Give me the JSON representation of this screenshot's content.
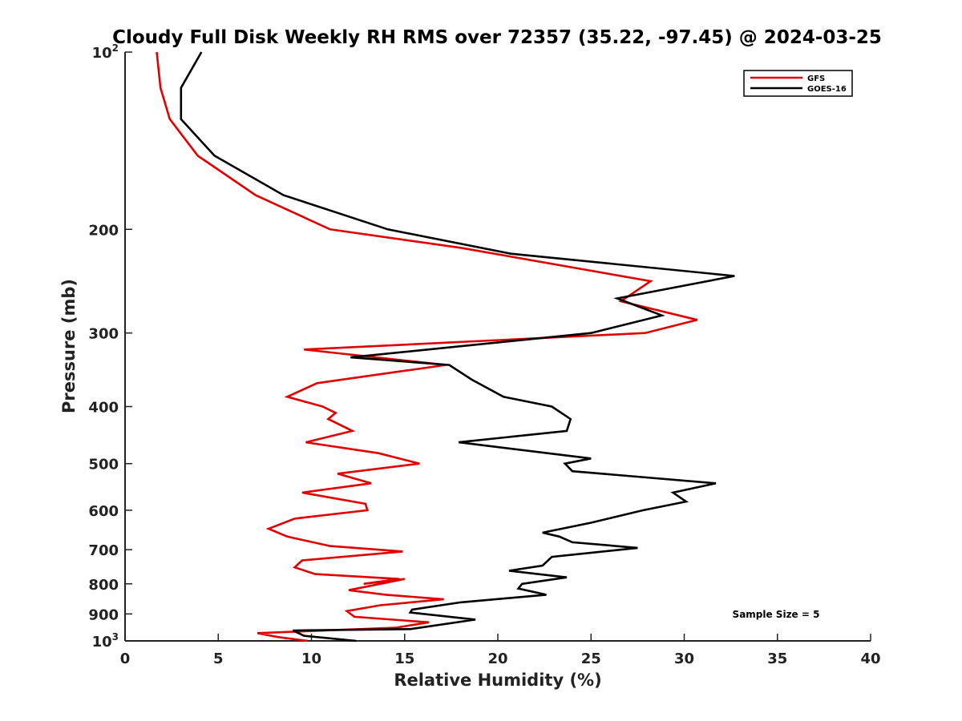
{
  "chart_data": {
    "type": "line",
    "title": "Cloudy Full Disk Weekly RH RMS over 72357 (35.22, -97.45) @ 2024-03-25",
    "xlabel": "Relative Humidity (%)",
    "ylabel": "Pressure (mb)",
    "xlim": [
      0,
      40
    ],
    "ylim": [
      100,
      1000
    ],
    "y_scale": "log",
    "y_reversed": true,
    "grid": false,
    "legend_position": "top-right",
    "x_ticks": [
      "0",
      "5",
      "10",
      "15",
      "20",
      "25",
      "30",
      "35",
      "40"
    ],
    "y_ticks": [
      {
        "value": 100,
        "base": "10",
        "exp": "2"
      },
      {
        "value": 200,
        "label": "200"
      },
      {
        "value": 300,
        "label": "300"
      },
      {
        "value": 400,
        "label": "400"
      },
      {
        "value": 500,
        "label": "500"
      },
      {
        "value": 600,
        "label": "600"
      },
      {
        "value": 700,
        "label": "700"
      },
      {
        "value": 800,
        "label": "800"
      },
      {
        "value": 900,
        "label": "900"
      },
      {
        "value": 1000,
        "base": "10",
        "exp": "3"
      }
    ],
    "annotation": "Sample Size = 5",
    "series": [
      {
        "name": "GFS",
        "color": "#e00000",
        "points": [
          [
            1.7,
            100
          ],
          [
            1.9,
            115
          ],
          [
            2.4,
            130
          ],
          [
            3.9,
            150
          ],
          [
            7.0,
            175
          ],
          [
            11.0,
            200
          ],
          [
            18.0,
            215
          ],
          [
            28.2,
            245
          ],
          [
            26.6,
            265
          ],
          [
            30.7,
            285
          ],
          [
            27.9,
            300
          ],
          [
            9.6,
            320
          ],
          [
            17.2,
            340
          ],
          [
            10.3,
            365
          ],
          [
            8.7,
            385
          ],
          [
            10.6,
            400
          ],
          [
            11.3,
            410
          ],
          [
            10.9,
            420
          ],
          [
            12.2,
            440
          ],
          [
            9.7,
            460
          ],
          [
            13.6,
            480
          ],
          [
            15.8,
            500
          ],
          [
            11.4,
            520
          ],
          [
            13.2,
            540
          ],
          [
            9.5,
            560
          ],
          [
            12.9,
            585
          ],
          [
            13.0,
            600
          ],
          [
            9.1,
            620
          ],
          [
            7.7,
            645
          ],
          [
            8.7,
            665
          ],
          [
            11.0,
            690
          ],
          [
            14.9,
            705
          ],
          [
            9.5,
            730
          ],
          [
            9.1,
            750
          ],
          [
            10.2,
            770
          ],
          [
            14.7,
            785
          ],
          [
            12.8,
            800
          ],
          [
            15.0,
            785
          ],
          [
            12.0,
            820
          ],
          [
            14.0,
            835
          ],
          [
            17.1,
            850
          ],
          [
            13.7,
            870
          ],
          [
            11.9,
            890
          ],
          [
            12.3,
            910
          ],
          [
            16.3,
            930
          ],
          [
            14.5,
            950
          ],
          [
            7.1,
            970
          ],
          [
            8.2,
            985
          ],
          [
            9.8,
            1000
          ]
        ]
      },
      {
        "name": "GOES-16",
        "color": "#000000",
        "points": [
          [
            4.1,
            100
          ],
          [
            3.0,
            115
          ],
          [
            3.0,
            130
          ],
          [
            4.8,
            150
          ],
          [
            8.5,
            175
          ],
          [
            14.1,
            200
          ],
          [
            20.7,
            220
          ],
          [
            32.7,
            240
          ],
          [
            26.4,
            262
          ],
          [
            28.8,
            280
          ],
          [
            25.0,
            300
          ],
          [
            12.1,
            330
          ],
          [
            17.4,
            340
          ],
          [
            18.6,
            360
          ],
          [
            20.3,
            385
          ],
          [
            22.9,
            400
          ],
          [
            23.9,
            420
          ],
          [
            23.7,
            440
          ],
          [
            17.9,
            460
          ],
          [
            25.0,
            490
          ],
          [
            23.6,
            500
          ],
          [
            24.0,
            515
          ],
          [
            31.7,
            540
          ],
          [
            29.4,
            560
          ],
          [
            30.1,
            580
          ],
          [
            27.8,
            600
          ],
          [
            25.0,
            630
          ],
          [
            22.4,
            655
          ],
          [
            23.3,
            665
          ],
          [
            24.0,
            680
          ],
          [
            27.5,
            695
          ],
          [
            22.9,
            720
          ],
          [
            22.4,
            745
          ],
          [
            20.6,
            760
          ],
          [
            23.7,
            780
          ],
          [
            21.3,
            800
          ],
          [
            21.1,
            815
          ],
          [
            22.6,
            835
          ],
          [
            18.0,
            860
          ],
          [
            15.4,
            885
          ],
          [
            15.3,
            895
          ],
          [
            18.8,
            920
          ],
          [
            15.3,
            955
          ],
          [
            9.0,
            960
          ],
          [
            9.6,
            980
          ],
          [
            12.4,
            1000
          ]
        ]
      }
    ]
  }
}
